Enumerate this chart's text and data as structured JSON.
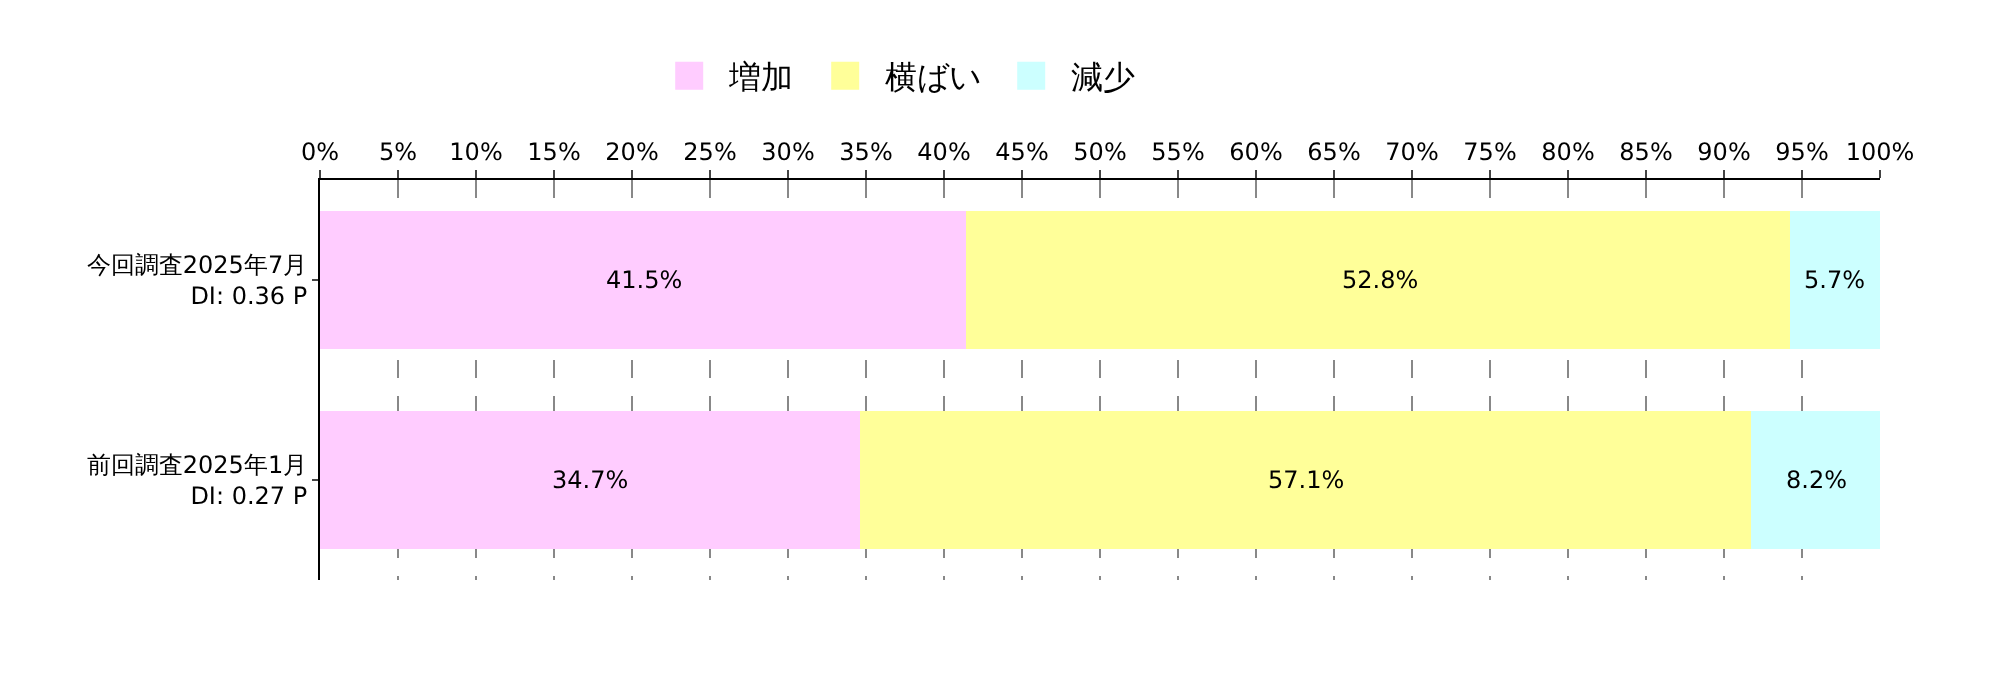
{
  "chart_data": {
    "type": "bar",
    "orientation": "horizontal",
    "stacked": true,
    "categories": [
      "今回調査2025年7月\nDI: 0.36 P",
      "前回調査2025年1月\nDI: 0.27 P"
    ],
    "series": [
      {
        "name": "増加",
        "color": "#ffccff",
        "values": [
          41.5,
          34.7
        ],
        "value_labels": [
          "41.5%",
          "34.7%"
        ]
      },
      {
        "name": "横ばい",
        "color": "#ffff99",
        "values": [
          52.8,
          57.1
        ],
        "value_labels": [
          "52.8%",
          "57.1%"
        ]
      },
      {
        "name": "減少",
        "color": "#ccffff",
        "values": [
          5.7,
          8.2
        ],
        "value_labels": [
          "5.7%",
          "8.2%"
        ]
      }
    ],
    "xlim": [
      0,
      100
    ],
    "xticks": [
      {
        "value": 0,
        "label": "0%"
      },
      {
        "value": 5,
        "label": "5%"
      },
      {
        "value": 10,
        "label": "10%"
      },
      {
        "value": 15,
        "label": "15%"
      },
      {
        "value": 20,
        "label": "20%"
      },
      {
        "value": 25,
        "label": "25%"
      },
      {
        "value": 30,
        "label": "30%"
      },
      {
        "value": 35,
        "label": "35%"
      },
      {
        "value": 40,
        "label": "40%"
      },
      {
        "value": 45,
        "label": "45%"
      },
      {
        "value": 50,
        "label": "50%"
      },
      {
        "value": 55,
        "label": "55%"
      },
      {
        "value": 60,
        "label": "60%"
      },
      {
        "value": 65,
        "label": "65%"
      },
      {
        "value": 70,
        "label": "70%"
      },
      {
        "value": 75,
        "label": "75%"
      },
      {
        "value": 80,
        "label": "80%"
      },
      {
        "value": 85,
        "label": "85%"
      },
      {
        "value": 90,
        "label": "90%"
      },
      {
        "value": 95,
        "label": "95%"
      },
      {
        "value": 100,
        "label": "100%"
      }
    ],
    "grid": "x",
    "legend": "top"
  }
}
